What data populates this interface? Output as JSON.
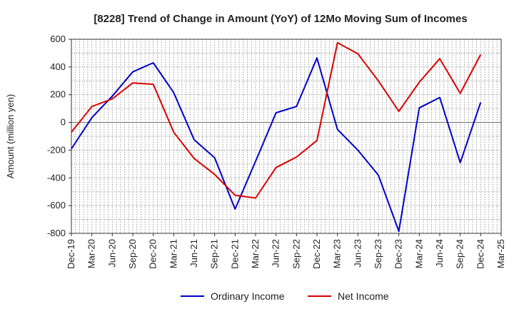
{
  "chart_data": {
    "type": "line",
    "title": "[8228]  Trend of Change in Amount (YoY) of 12Mo Moving Sum of Incomes",
    "ylabel": "Amount (million yen)",
    "xlabel": "",
    "ylim": [
      -800,
      600
    ],
    "yticks": [
      600,
      400,
      200,
      0,
      -200,
      -400,
      -600,
      -800
    ],
    "x": [
      "Dec-19",
      "Mar-20",
      "Jun-20",
      "Sep-20",
      "Dec-20",
      "Mar-21",
      "Jun-21",
      "Sep-21",
      "Dec-21",
      "Mar-22",
      "Jun-22",
      "Sep-22",
      "Dec-22",
      "Mar-23",
      "Jun-23",
      "Sep-23",
      "Dec-23",
      "Mar-24",
      "Jun-24",
      "Sep-24",
      "Dec-24",
      "Mar-25"
    ],
    "grid": true,
    "legend_position": "bottom",
    "series": [
      {
        "name": "Ordinary Income",
        "color": "#0000cc",
        "values": [
          -190,
          35,
          190,
          365,
          430,
          215,
          -125,
          -255,
          -625,
          -280,
          70,
          115,
          465,
          -50,
          -200,
          -380,
          -785,
          105,
          180,
          -290,
          145,
          null
        ]
      },
      {
        "name": "Net Income",
        "color": "#dd0000",
        "values": [
          -70,
          115,
          170,
          285,
          275,
          -70,
          -260,
          -375,
          -525,
          -545,
          -325,
          -250,
          -130,
          575,
          495,
          300,
          80,
          290,
          460,
          210,
          490,
          null
        ]
      }
    ]
  }
}
